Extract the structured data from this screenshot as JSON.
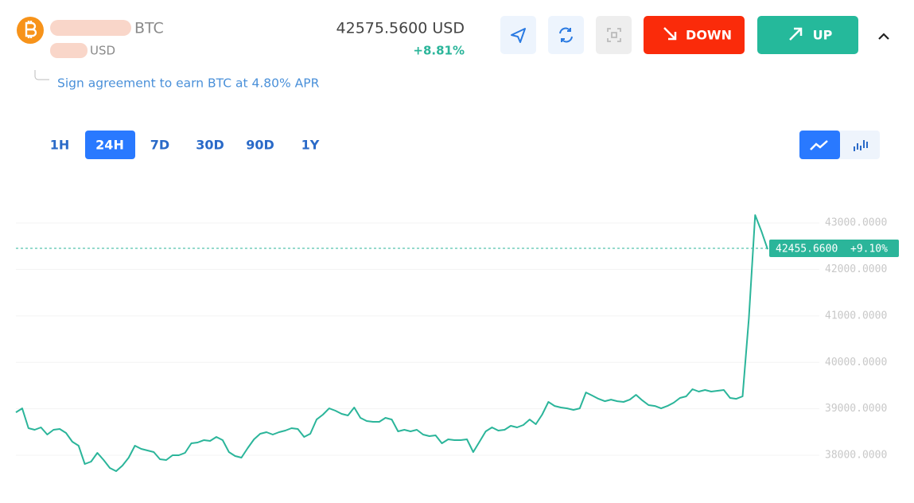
{
  "header": {
    "base_currency": "BTC",
    "quote_currency": "USD",
    "price": "42575.5600 USD",
    "change": "+8.81%",
    "note": "Sign agreement to earn BTC at 4.80% APR"
  },
  "buttons": {
    "down": "DOWN",
    "up": "UP"
  },
  "periods": [
    {
      "label": "1H"
    },
    {
      "label": "24H",
      "selected": true
    },
    {
      "label": "7D"
    },
    {
      "label": "30D"
    },
    {
      "label": "90D"
    },
    {
      "label": "1Y"
    }
  ],
  "chart_data": {
    "type": "line",
    "color": "#2bb59a",
    "values": [
      38925,
      39010,
      38583,
      38549,
      38600,
      38446,
      38549,
      38566,
      38480,
      38292,
      38206,
      37813,
      37864,
      38052,
      37898,
      37727,
      37659,
      37778,
      37950,
      38206,
      38138,
      38104,
      38069,
      37915,
      37898,
      38001,
      38001,
      38052,
      38258,
      38275,
      38326,
      38309,
      38395,
      38326,
      38069,
      37984,
      37950,
      38155,
      38343,
      38463,
      38497,
      38446,
      38497,
      38532,
      38583,
      38566,
      38395,
      38463,
      38771,
      38874,
      39010,
      38960,
      38891,
      38857,
      39028,
      38806,
      38737,
      38720,
      38720,
      38806,
      38771,
      38515,
      38549,
      38515,
      38549,
      38446,
      38412,
      38429,
      38258,
      38343,
      38326,
      38326,
      38343,
      38069,
      38292,
      38515,
      38600,
      38532,
      38549,
      38634,
      38600,
      38652,
      38771,
      38669,
      38874,
      39148,
      39062,
      39028,
      39010,
      38977,
      39010,
      39353,
      39285,
      39216,
      39165,
      39199,
      39165,
      39148,
      39199,
      39302,
      39182,
      39080,
      39062,
      39010,
      39062,
      39131,
      39234,
      39268,
      39422,
      39371,
      39405,
      39371,
      39388,
      39405,
      39234,
      39216,
      39268,
      40946,
      43171,
      42829,
      42435
    ],
    "ylim": [
      37350,
      43500
    ],
    "yticks": [
      {
        "value": 38000,
        "label": "38000.0000"
      },
      {
        "value": 39000,
        "label": "39000.0000"
      },
      {
        "value": 40000,
        "label": "40000.0000"
      },
      {
        "value": 41000,
        "label": "41000.0000"
      },
      {
        "value": 42000,
        "label": "42000.0000"
      },
      {
        "value": 43000,
        "label": "43000.0000"
      }
    ],
    "grid": true,
    "current_price": {
      "value": 42455.66,
      "label": "42455.6600"
    },
    "current_change": "+9.10%"
  }
}
